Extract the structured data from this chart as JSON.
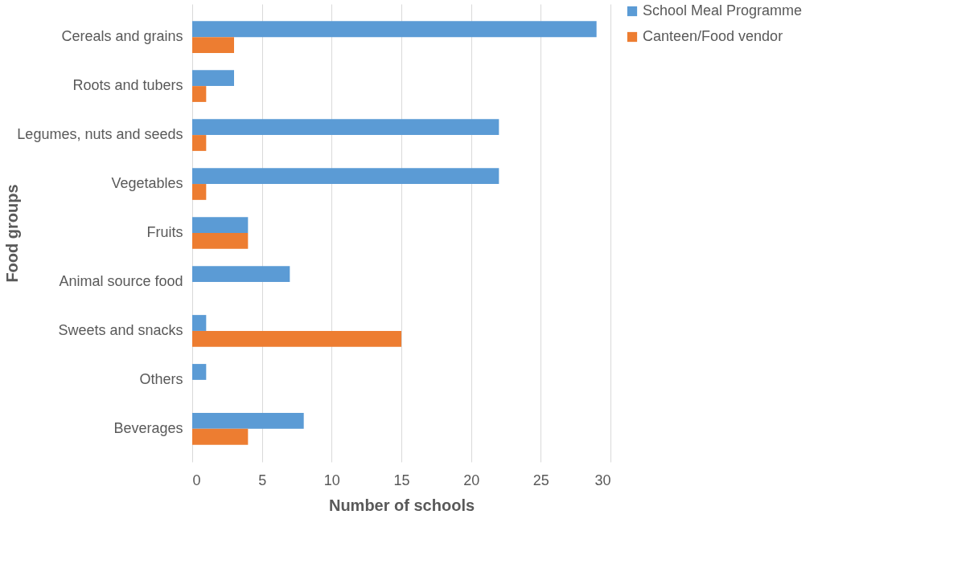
{
  "chart_data": {
    "type": "bar",
    "orientation": "horizontal",
    "xlabel": "Number of schools",
    "ylabel": "Food groups",
    "categories": [
      "Cereals and grains",
      "Roots and tubers",
      "Legumes, nuts and seeds",
      "Vegetables",
      "Fruits",
      "Animal source food",
      "Sweets and snacks",
      "Others",
      "Beverages"
    ],
    "series": [
      {
        "name": "School Meal Programme",
        "color": "#5b9bd5",
        "values": [
          29,
          3,
          22,
          22,
          4,
          7,
          1,
          1,
          8
        ]
      },
      {
        "name": "Canteen/Food vendor",
        "color": "#ed7d31",
        "values": [
          3,
          1,
          1,
          1,
          4,
          0,
          15,
          0,
          4
        ]
      }
    ],
    "xlim": [
      0,
      30
    ],
    "xticks": [
      0,
      5,
      10,
      15,
      20,
      25,
      30
    ],
    "grid": "x",
    "legend": "right"
  }
}
